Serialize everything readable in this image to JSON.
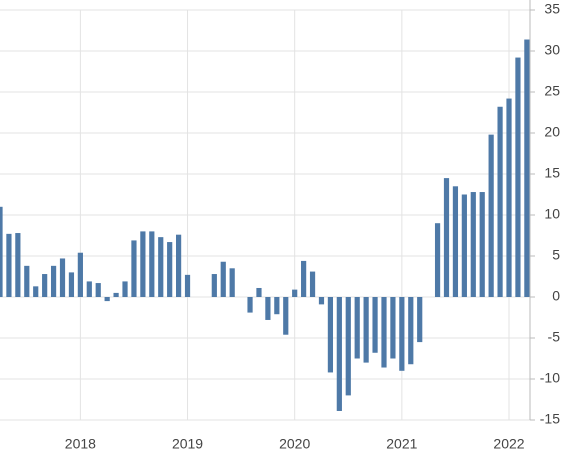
{
  "chart_data": {
    "type": "bar",
    "categories": [
      null,
      null,
      null,
      null,
      null,
      null,
      null,
      null,
      null,
      "2018",
      null,
      null,
      null,
      null,
      null,
      null,
      null,
      null,
      null,
      null,
      null,
      "2019",
      null,
      null,
      null,
      null,
      null,
      null,
      null,
      null,
      null,
      null,
      null,
      "2020",
      null,
      null,
      null,
      null,
      null,
      null,
      null,
      null,
      null,
      null,
      null,
      "2021",
      null,
      null,
      null,
      null,
      null,
      null,
      null,
      null,
      null,
      null,
      null,
      "2022",
      null,
      null
    ],
    "values": [
      11,
      7.7,
      7.8,
      3.8,
      1.3,
      2.8,
      3.8,
      4.7,
      3,
      5.4,
      1.9,
      1.7,
      -0.5,
      0.5,
      1.9,
      6.9,
      8,
      8,
      7.3,
      6.7,
      7.6,
      2.7,
      0,
      0,
      2.8,
      4.3,
      3.5,
      0,
      -1.9,
      1.1,
      -2.8,
      -2.1,
      -4.6,
      0.9,
      4.4,
      3.1,
      -0.9,
      -9.2,
      -13.9,
      -12,
      -7.5,
      -8,
      -6.8,
      -8.6,
      -7.5,
      -9,
      -8.2,
      -5.5,
      0,
      9,
      14.5,
      13.5,
      12.5,
      12.8,
      12.8,
      19.8,
      23.2,
      24.2,
      29.2,
      31.4
    ],
    "color": "#4e79a7",
    "ylim": [
      -15,
      35
    ],
    "yticks": [
      -15,
      -10,
      -5,
      0,
      5,
      10,
      15,
      20,
      25,
      30,
      35
    ],
    "grid": true
  }
}
